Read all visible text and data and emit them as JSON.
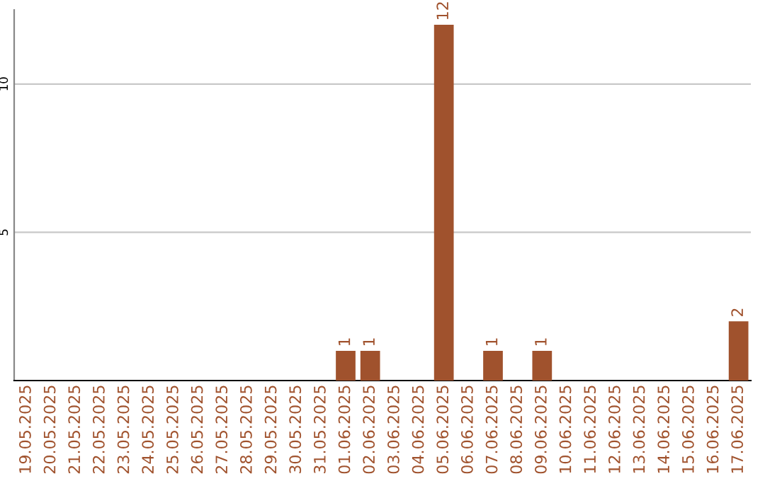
{
  "chart_data": {
    "type": "bar",
    "categories": [
      "19.05.2025",
      "20.05.2025",
      "21.05.2025",
      "22.05.2025",
      "23.05.2025",
      "24.05.2025",
      "25.05.2025",
      "26.05.2025",
      "27.05.2025",
      "28.05.2025",
      "29.05.2025",
      "30.05.2025",
      "31.05.2025",
      "01.06.2025",
      "02.06.2025",
      "03.06.2025",
      "04.06.2025",
      "05.06.2025",
      "06.06.2025",
      "07.06.2025",
      "08.06.2025",
      "09.06.2025",
      "10.06.2025",
      "11.06.2025",
      "12.06.2025",
      "13.06.2025",
      "14.06.2025",
      "15.06.2025",
      "16.06.2025",
      "17.06.2025"
    ],
    "values": [
      0,
      0,
      0,
      0,
      0,
      0,
      0,
      0,
      0,
      0,
      0,
      0,
      0,
      1,
      1,
      0,
      0,
      12,
      0,
      1,
      0,
      1,
      0,
      0,
      0,
      0,
      0,
      0,
      0,
      2
    ],
    "value_labels": [
      null,
      null,
      null,
      null,
      null,
      null,
      null,
      null,
      null,
      null,
      null,
      null,
      null,
      "1",
      "1",
      null,
      null,
      "12",
      null,
      "1",
      null,
      "1",
      null,
      null,
      null,
      null,
      null,
      null,
      null,
      "2"
    ],
    "color": "#a0522d",
    "ylim": [
      0,
      12.5
    ],
    "yticks": [
      5,
      10
    ],
    "grid": "y",
    "legend": false
  }
}
